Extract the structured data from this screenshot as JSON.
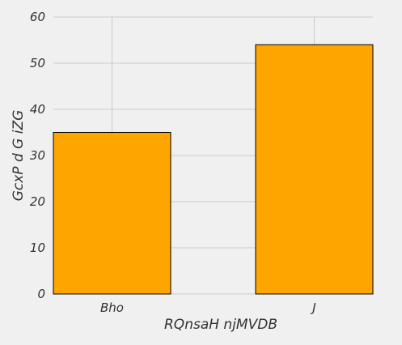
{
  "chart_data": {
    "type": "bar",
    "categories": [
      "Bho",
      "J"
    ],
    "values": [
      35,
      54
    ],
    "xlabel": "RQnsaH njMVDB",
    "ylabel": "GcxP d G iZG",
    "ylim": [
      0,
      60
    ],
    "yticks": [
      0,
      10,
      20,
      30,
      40,
      50,
      60
    ],
    "grid": true,
    "bar_color": "#ffa500",
    "bar_edge_color": "#000000",
    "background_color": "#f0f0f0",
    "grid_color": "#cbcbcb"
  }
}
